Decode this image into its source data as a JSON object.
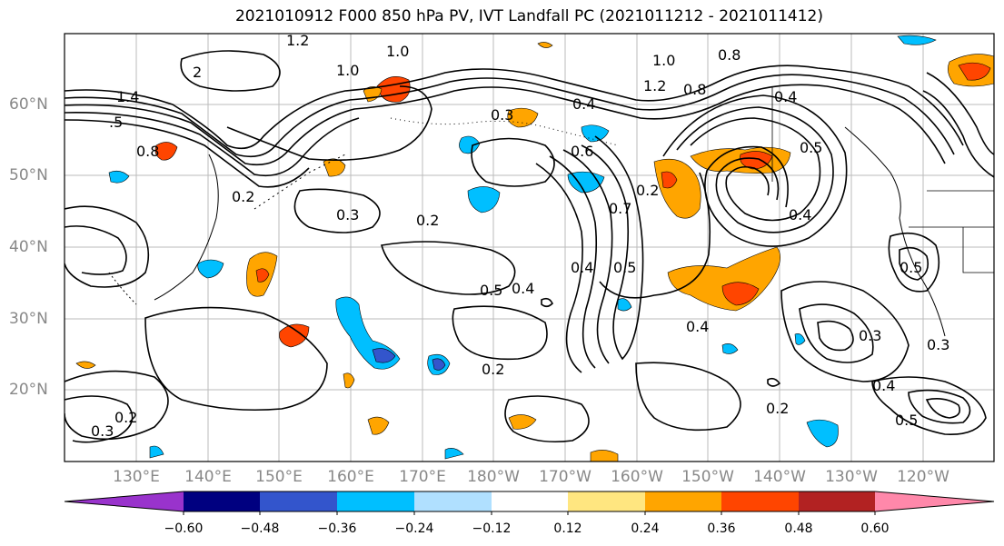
{
  "title": "2021010912 F000 850 hPa PV, IVT Landfall PC (2021011212 - 2021011412)",
  "lat_labels": [
    "60°N",
    "50°N",
    "40°N",
    "30°N",
    "20°N"
  ],
  "lon_labels": [
    "130°E",
    "140°E",
    "150°E",
    "160°E",
    "170°E",
    "180°W",
    "170°W",
    "160°W",
    "150°W",
    "140°W",
    "130°W",
    "120°W"
  ],
  "contour_labels": [
    "1.2",
    "1.0",
    "1.0",
    "2",
    "1.4",
    ".5",
    "0.8",
    "0.2",
    "0.3",
    "0.2",
    "0.3",
    "0.5",
    "0.4",
    "0.4",
    "0.5",
    "0.7",
    "0.2",
    "0.2",
    "0.4",
    "0.6",
    "0.4",
    "1.0",
    "0.8",
    "1.2",
    "0.8",
    "0.4",
    "0.5",
    "0.4",
    "0.5",
    "0.3",
    "0.4",
    "0.5",
    "0.2",
    "0.3",
    "0.2",
    "0.3"
  ],
  "colorbar": {
    "ticks": [
      "−0.60",
      "−0.48",
      "−0.36",
      "−0.24",
      "−0.12",
      "0.12",
      "0.24",
      "0.36",
      "0.48",
      "0.60"
    ],
    "colors": [
      "#9933cc",
      "#000080",
      "#3355cc",
      "#00bfff",
      "#b0e0ff",
      "#ffffff",
      "#ffe680",
      "#ffa500",
      "#ff4500",
      "#b22222",
      "#ff88aa"
    ]
  }
}
